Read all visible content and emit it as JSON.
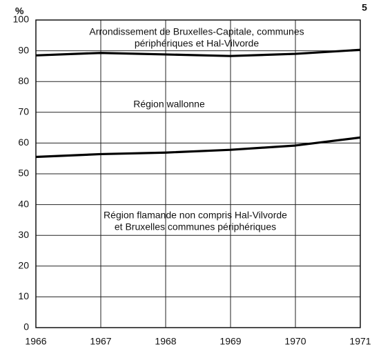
{
  "chart_data": {
    "type": "line",
    "page_number": "5",
    "ylabel": "%",
    "x": [
      1966,
      1967,
      1968,
      1969,
      1970,
      1971
    ],
    "xlim": [
      1966,
      1971
    ],
    "xticks": [
      1966,
      1967,
      1968,
      1969,
      1970,
      1971
    ],
    "ylim": [
      0,
      100
    ],
    "yticks": [
      0,
      10,
      20,
      30,
      40,
      50,
      60,
      70,
      80,
      90,
      100
    ],
    "grid": true,
    "series": [
      {
        "color": "#000000",
        "values": [
          88.5,
          89.3,
          88.8,
          88.3,
          89.0,
          90.3
        ]
      },
      {
        "color": "#000000",
        "values": [
          55.5,
          56.4,
          56.9,
          57.8,
          59.2,
          61.8
        ]
      }
    ],
    "annotations": [
      "Arrondissement de Bruxelles-Capitale, communes",
      "périphériques et Hal-Vilvorde",
      "Région wallonne",
      "Région flamande non compris Hal-Vilvorde",
      "et Bruxelles communes périphériques"
    ]
  }
}
